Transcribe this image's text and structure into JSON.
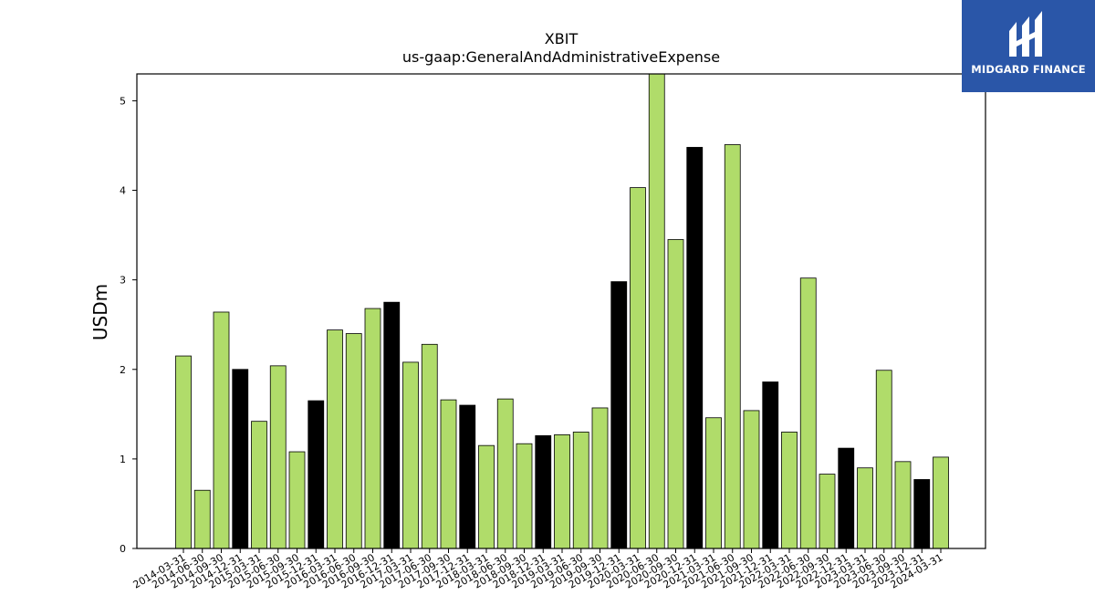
{
  "chart_data": {
    "type": "bar",
    "title": "XBIT",
    "subtitle": "us-gaap:GeneralAndAdministrativeExpense",
    "xlabel": "",
    "ylabel": "USDm",
    "ylim": [
      0,
      5.3
    ],
    "yticks": [
      "0",
      "1",
      "2",
      "3",
      "4",
      "5"
    ],
    "grid": false,
    "categories": [
      "2014-03-31",
      "2014-06-30",
      "2014-09-30",
      "2014-12-31",
      "2015-03-31",
      "2015-06-30",
      "2015-09-30",
      "2015-12-31",
      "2016-03-31",
      "2016-06-30",
      "2016-09-30",
      "2016-12-31",
      "2017-03-31",
      "2017-06-30",
      "2017-09-30",
      "2017-12-31",
      "2018-03-31",
      "2018-06-30",
      "2018-09-30",
      "2018-12-31",
      "2019-03-31",
      "2019-06-30",
      "2019-09-30",
      "2019-12-31",
      "2020-03-31",
      "2020-06-30",
      "2020-09-30",
      "2020-12-31",
      "2021-03-31",
      "2021-06-30",
      "2021-09-30",
      "2021-12-31",
      "2022-03-31",
      "2022-06-30",
      "2022-09-30",
      "2022-12-31",
      "2023-03-31",
      "2023-06-30",
      "2023-09-30",
      "2023-12-31",
      "2024-03-31"
    ],
    "values": [
      2.15,
      0.65,
      2.64,
      2.0,
      1.42,
      2.04,
      1.08,
      1.65,
      2.44,
      2.4,
      2.68,
      2.75,
      2.08,
      2.28,
      1.66,
      1.6,
      1.15,
      1.67,
      1.17,
      1.26,
      1.27,
      1.3,
      1.57,
      2.98,
      4.03,
      5.3,
      3.45,
      4.48,
      1.46,
      4.51,
      1.54,
      1.86,
      1.3,
      3.02,
      0.83,
      1.12,
      0.9,
      1.99,
      0.97,
      0.77,
      1.02
    ],
    "highlight": [
      false,
      false,
      false,
      true,
      false,
      false,
      false,
      true,
      false,
      false,
      false,
      true,
      false,
      false,
      false,
      true,
      false,
      false,
      false,
      true,
      false,
      false,
      false,
      true,
      false,
      false,
      false,
      true,
      false,
      false,
      false,
      true,
      false,
      false,
      false,
      true,
      false,
      false,
      false,
      true,
      false
    ],
    "colors": {
      "bar": "#b0dc6a",
      "highlight": "#000000",
      "edge": "#000000"
    }
  },
  "logo": {
    "text": "MIDGARD FINANCE",
    "background": "#2a56a8"
  }
}
